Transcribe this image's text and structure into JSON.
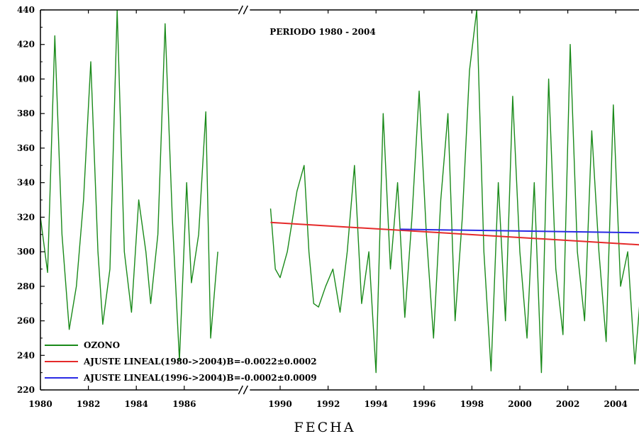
{
  "chart_data": {
    "type": "line",
    "title": "PERIODO 1980 - 2004",
    "xlabel": "FECHA",
    "ylabel": "",
    "xlim": [
      1980,
      2005
    ],
    "ylim": [
      220,
      440
    ],
    "x_ticks": [
      1980,
      1982,
      1984,
      1986,
      1990,
      1992,
      1994,
      1996,
      1998,
      2000,
      2002,
      2004
    ],
    "x_tick_labels": [
      "1980",
      "1982",
      "1984",
      "1986",
      "1990",
      "1992",
      "1994",
      "1996",
      "1998",
      "2000",
      "2002",
      "2004"
    ],
    "y_ticks": [
      220,
      240,
      260,
      280,
      300,
      320,
      340,
      360,
      380,
      400,
      420,
      440
    ],
    "y_tick_labels": [
      "220",
      "240",
      "260",
      "280",
      "300",
      "320",
      "340",
      "360",
      "380",
      "400",
      "420",
      "440"
    ],
    "axis_break": {
      "from": 1987.5,
      "to": 1989.5,
      "marker": "double-slash"
    },
    "grid": false,
    "legend_position": "bottom-left",
    "series": [
      {
        "name": "OZONO",
        "color": "#1a8a1a",
        "kind": "monthly series",
        "points": [
          [
            1980.0,
            320
          ],
          [
            1980.3,
            288
          ],
          [
            1980.6,
            425
          ],
          [
            1980.9,
            310
          ],
          [
            1981.2,
            255
          ],
          [
            1981.5,
            280
          ],
          [
            1981.8,
            330
          ],
          [
            1982.1,
            410
          ],
          [
            1982.4,
            300
          ],
          [
            1982.6,
            258
          ],
          [
            1982.9,
            290
          ],
          [
            1983.2,
            440
          ],
          [
            1983.5,
            300
          ],
          [
            1983.8,
            265
          ],
          [
            1984.1,
            330
          ],
          [
            1984.4,
            300
          ],
          [
            1984.6,
            270
          ],
          [
            1984.9,
            310
          ],
          [
            1985.2,
            432
          ],
          [
            1985.5,
            320
          ],
          [
            1985.8,
            237
          ],
          [
            1986.1,
            340
          ],
          [
            1986.3,
            282
          ],
          [
            1986.6,
            310
          ],
          [
            1986.9,
            381
          ],
          [
            1987.1,
            250
          ],
          [
            1987.4,
            300
          ],
          [
            1987.6,
            318
          ],
          [
            1989.6,
            325
          ],
          [
            1989.8,
            290
          ],
          [
            1990.0,
            285
          ],
          [
            1990.3,
            300
          ],
          [
            1990.7,
            335
          ],
          [
            1991.0,
            350
          ],
          [
            1991.2,
            300
          ],
          [
            1991.4,
            270
          ],
          [
            1991.6,
            268
          ],
          [
            1991.9,
            280
          ],
          [
            1992.2,
            290
          ],
          [
            1992.5,
            265
          ],
          [
            1992.8,
            300
          ],
          [
            1993.1,
            350
          ],
          [
            1993.4,
            270
          ],
          [
            1993.7,
            300
          ],
          [
            1994.0,
            230
          ],
          [
            1994.3,
            380
          ],
          [
            1994.6,
            290
          ],
          [
            1994.9,
            340
          ],
          [
            1995.2,
            262
          ],
          [
            1995.5,
            320
          ],
          [
            1995.8,
            393
          ],
          [
            1996.1,
            310
          ],
          [
            1996.4,
            250
          ],
          [
            1996.7,
            330
          ],
          [
            1997.0,
            380
          ],
          [
            1997.3,
            260
          ],
          [
            1997.6,
            320
          ],
          [
            1997.9,
            405
          ],
          [
            1998.2,
            440
          ],
          [
            1998.5,
            300
          ],
          [
            1998.8,
            231
          ],
          [
            1999.1,
            340
          ],
          [
            1999.4,
            260
          ],
          [
            1999.7,
            390
          ],
          [
            2000.0,
            300
          ],
          [
            2000.3,
            250
          ],
          [
            2000.6,
            340
          ],
          [
            2000.9,
            230
          ],
          [
            2001.2,
            400
          ],
          [
            2001.5,
            290
          ],
          [
            2001.8,
            252
          ],
          [
            2002.1,
            420
          ],
          [
            2002.4,
            300
          ],
          [
            2002.7,
            260
          ],
          [
            2003.0,
            370
          ],
          [
            2003.3,
            300
          ],
          [
            2003.6,
            248
          ],
          [
            2003.9,
            385
          ],
          [
            2004.2,
            280
          ],
          [
            2004.5,
            300
          ],
          [
            2004.8,
            235
          ],
          [
            2005.0,
            270
          ]
        ]
      },
      {
        "name": "AJUSTE LINEAL(1980->2004)B=-0.0022±0.0002",
        "color": "#e52a2a",
        "points": [
          [
            1980.0,
            325.0
          ],
          [
            1987.7,
            318.2
          ],
          [
            1989.6,
            317.0
          ],
          [
            2005.0,
            304.0
          ]
        ]
      },
      {
        "name": "AJUSTE LINEAL(1996->2004)B=-0.0002±0.0009",
        "color": "#2a2ae5",
        "points": [
          [
            1995.0,
            313.0
          ],
          [
            2005.0,
            311.0
          ]
        ]
      }
    ],
    "legend": [
      {
        "label": "OZONO",
        "color": "#1a8a1a"
      },
      {
        "label": "AJUSTE LINEAL(1980->2004)B=-0.0022±0.0002",
        "color": "#e52a2a"
      },
      {
        "label": "AJUSTE LINEAL(1996->2004)B=-0.0002±0.0009",
        "color": "#2a2ae5"
      }
    ]
  }
}
